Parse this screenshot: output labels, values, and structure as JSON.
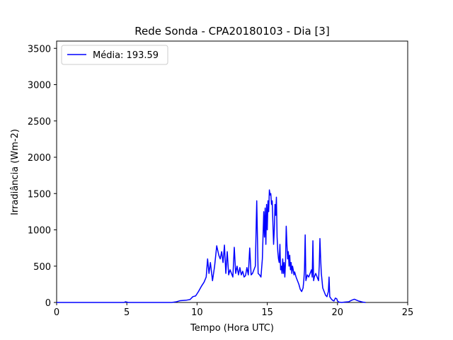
{
  "chart_data": {
    "type": "line",
    "title": "Rede Sonda - CPA20180103 - Dia [3]",
    "xlabel": "Tempo (Hora UTC)",
    "ylabel": "Irradiância (Wm-2)",
    "xlim": [
      0,
      25
    ],
    "ylim": [
      0,
      3600
    ],
    "xticks": [
      0,
      5,
      10,
      15,
      20,
      25
    ],
    "yticks": [
      0,
      500,
      1000,
      1500,
      2000,
      2500,
      3000,
      3500
    ],
    "grid": false,
    "legend_position": "top-left",
    "series": [
      {
        "name": "Média: 193.59",
        "color": "#0000ff",
        "x": [
          0,
          4.8,
          4.9,
          5.0,
          5.1,
          8.2,
          8.5,
          8.8,
          9.2,
          9.5,
          9.7,
          9.9,
          10.1,
          10.3,
          10.5,
          10.65,
          10.75,
          10.85,
          10.95,
          11.1,
          11.25,
          11.4,
          11.55,
          11.65,
          11.75,
          11.85,
          11.95,
          12.05,
          12.15,
          12.25,
          12.35,
          12.45,
          12.55,
          12.65,
          12.75,
          12.85,
          12.95,
          13.05,
          13.15,
          13.25,
          13.35,
          13.45,
          13.55,
          13.65,
          13.75,
          13.85,
          13.95,
          14.05,
          14.15,
          14.25,
          14.35,
          14.45,
          14.55,
          14.65,
          14.75,
          14.8,
          14.85,
          14.9,
          14.95,
          15.0,
          15.05,
          15.1,
          15.15,
          15.2,
          15.25,
          15.3,
          15.35,
          15.4,
          15.45,
          15.5,
          15.55,
          15.6,
          15.65,
          15.7,
          15.75,
          15.8,
          15.85,
          15.9,
          15.95,
          16.0,
          16.05,
          16.1,
          16.15,
          16.2,
          16.25,
          16.3,
          16.35,
          16.4,
          16.45,
          16.5,
          16.55,
          16.6,
          16.65,
          16.7,
          16.75,
          16.8,
          16.85,
          16.9,
          16.95,
          17.05,
          17.15,
          17.25,
          17.35,
          17.45,
          17.55,
          17.6,
          17.65,
          17.7,
          17.75,
          17.85,
          17.95,
          18.05,
          18.15,
          18.2,
          18.25,
          18.3,
          18.35,
          18.45,
          18.55,
          18.65,
          18.7,
          18.75,
          18.8,
          18.85,
          18.9,
          18.95,
          19.05,
          19.15,
          19.25,
          19.35,
          19.4,
          19.45,
          19.55,
          19.65,
          19.75,
          19.85,
          19.95,
          20.0,
          20.1,
          20.3,
          20.5,
          20.8,
          21.0,
          21.2,
          21.5,
          21.8,
          22.0
        ],
        "y": [
          0,
          0,
          10,
          5,
          0,
          0,
          8,
          25,
          30,
          40,
          80,
          90,
          150,
          220,
          280,
          350,
          600,
          400,
          550,
          300,
          500,
          780,
          650,
          600,
          700,
          550,
          790,
          400,
          700,
          380,
          450,
          400,
          350,
          760,
          400,
          500,
          380,
          480,
          380,
          430,
          350,
          370,
          480,
          380,
          750,
          380,
          400,
          450,
          500,
          1400,
          400,
          380,
          350,
          600,
          1250,
          900,
          1300,
          800,
          1350,
          1000,
          1400,
          1250,
          1550,
          1480,
          1500,
          1350,
          1400,
          1100,
          800,
          1000,
          1350,
          1200,
          1450,
          900,
          700,
          600,
          550,
          800,
          450,
          500,
          400,
          600,
          400,
          550,
          350,
          550,
          1050,
          800,
          600,
          700,
          500,
          650,
          450,
          550,
          400,
          500,
          450,
          380,
          420,
          350,
          300,
          250,
          180,
          150,
          200,
          300,
          450,
          930,
          300,
          380,
          350,
          400,
          450,
          350,
          850,
          300,
          350,
          400,
          350,
          300,
          500,
          880,
          600,
          400,
          300,
          200,
          150,
          100,
          80,
          150,
          350,
          80,
          50,
          30,
          20,
          60,
          50,
          20,
          5,
          0,
          5,
          10,
          30,
          45,
          20,
          5,
          0
        ]
      }
    ]
  }
}
